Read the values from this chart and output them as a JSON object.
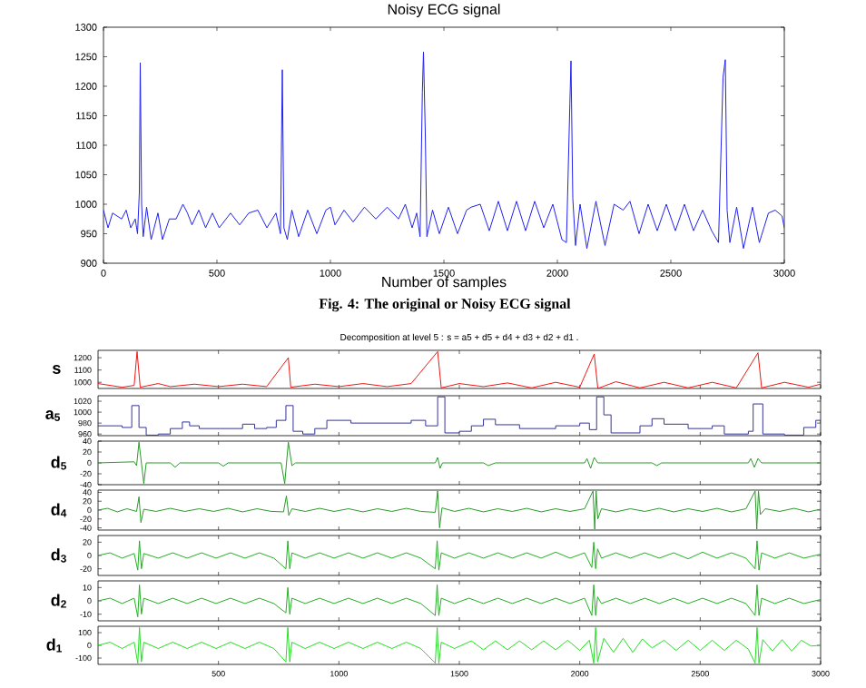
{
  "chart_data": [
    {
      "type": "line",
      "title": "Noisy ECG signal",
      "xlabel": "Number of samples",
      "annotations": [
        "Fig. 4: The original or Noisy ECG signal"
      ],
      "color": "#2020f0",
      "xlim": [
        0,
        3000
      ],
      "ylim": [
        900,
        1300
      ],
      "xticks": [
        0,
        500,
        1000,
        1500,
        2000,
        2500,
        3000
      ],
      "yticks": [
        900,
        950,
        1000,
        1050,
        1100,
        1150,
        1200,
        1250,
        1300
      ],
      "x": [
        0,
        20,
        40,
        80,
        100,
        120,
        140,
        150,
        158,
        162,
        168,
        175,
        190,
        210,
        240,
        260,
        290,
        320,
        350,
        370,
        390,
        420,
        450,
        480,
        510,
        560,
        600,
        640,
        680,
        720,
        760,
        780,
        788,
        795,
        810,
        830,
        860,
        900,
        940,
        980,
        1000,
        1020,
        1060,
        1100,
        1150,
        1200,
        1250,
        1300,
        1330,
        1360,
        1380,
        1395,
        1405,
        1410,
        1418,
        1425,
        1450,
        1480,
        1520,
        1560,
        1600,
        1620,
        1660,
        1700,
        1740,
        1780,
        1820,
        1860,
        1900,
        1940,
        1980,
        2020,
        2040,
        2055,
        2060,
        2068,
        2080,
        2100,
        2130,
        2170,
        2210,
        2250,
        2290,
        2320,
        2360,
        2400,
        2440,
        2480,
        2520,
        2560,
        2600,
        2640,
        2680,
        2710,
        2730,
        2740,
        2748,
        2760,
        2790,
        2820,
        2860,
        2890,
        2930,
        2960,
        2990,
        3000
      ],
      "values": [
        990,
        960,
        985,
        975,
        990,
        960,
        975,
        950,
        1020,
        1240,
        1000,
        945,
        995,
        940,
        985,
        940,
        975,
        975,
        1000,
        985,
        965,
        990,
        960,
        985,
        960,
        985,
        965,
        985,
        990,
        960,
        985,
        950,
        1228,
        960,
        940,
        990,
        945,
        990,
        950,
        990,
        995,
        965,
        990,
        970,
        995,
        975,
        995,
        975,
        1000,
        960,
        985,
        945,
        1190,
        1258,
        1120,
        945,
        990,
        950,
        995,
        950,
        990,
        995,
        1000,
        955,
        1005,
        955,
        1005,
        955,
        1005,
        960,
        1000,
        940,
        935,
        1170,
        1243,
        1010,
        930,
        1000,
        925,
        1005,
        930,
        1000,
        990,
        1005,
        950,
        1000,
        955,
        1000,
        955,
        1000,
        955,
        990,
        955,
        935,
        1215,
        1245,
        990,
        935,
        995,
        925,
        995,
        935,
        985,
        990,
        980,
        960
      ]
    },
    {
      "type": "line",
      "title": "Decomposition at level 5 : s = a5 + d5 + d4 + d3 + d2 + d1 .",
      "ylabel": "s",
      "color": "#ee1515",
      "xlim": [
        0,
        3000
      ],
      "ylim": [
        950,
        1260
      ],
      "xticks": [
        500,
        1000,
        1500,
        2000,
        2500,
        3000
      ],
      "yticks": [
        1000,
        1100,
        1200
      ],
      "tick_labels": "y",
      "x": [
        0,
        100,
        150,
        162,
        175,
        250,
        300,
        400,
        500,
        600,
        700,
        790,
        800,
        900,
        1000,
        1100,
        1200,
        1300,
        1410,
        1425,
        1500,
        1600,
        1700,
        1800,
        1900,
        2000,
        2060,
        2075,
        2150,
        2250,
        2350,
        2450,
        2550,
        2650,
        2740,
        2755,
        2850,
        2950,
        3000
      ],
      "values": [
        990,
        960,
        975,
        1250,
        960,
        990,
        965,
        985,
        965,
        985,
        965,
        1200,
        960,
        985,
        965,
        990,
        965,
        990,
        1250,
        955,
        990,
        965,
        995,
        955,
        1000,
        960,
        1230,
        950,
        1005,
        955,
        1000,
        955,
        1000,
        955,
        1240,
        955,
        1000,
        960,
        985
      ]
    },
    {
      "type": "step",
      "ylabel": "a$_{5}$",
      "color": "#33339a",
      "xlim": [
        0,
        3000
      ],
      "ylim": [
        957,
        1030
      ],
      "xticks": [
        500,
        1000,
        1500,
        2000,
        2500,
        3000
      ],
      "yticks": [
        960,
        980,
        1000,
        1020
      ],
      "tick_labels": "y",
      "x": [
        0,
        100,
        140,
        170,
        200,
        250,
        300,
        350,
        380,
        420,
        560,
        600,
        650,
        700,
        740,
        780,
        810,
        850,
        900,
        950,
        1050,
        1200,
        1300,
        1360,
        1410,
        1440,
        1500,
        1550,
        1600,
        1650,
        1750,
        1900,
        2000,
        2040,
        2070,
        2100,
        2130,
        2200,
        2250,
        2300,
        2350,
        2450,
        2550,
        2600,
        2700,
        2720,
        2760,
        2850,
        2930,
        2980,
        3000
      ],
      "values": [
        975,
        972,
        1012,
        972,
        958,
        960,
        970,
        982,
        975,
        970,
        970,
        978,
        970,
        972,
        985,
        1012,
        965,
        960,
        970,
        985,
        980,
        980,
        985,
        975,
        1028,
        962,
        965,
        975,
        987,
        977,
        970,
        975,
        980,
        968,
        1028,
        995,
        962,
        962,
        975,
        988,
        978,
        970,
        975,
        960,
        965,
        1015,
        960,
        958,
        972,
        985,
        980
      ]
    },
    {
      "type": "line",
      "ylabel": "d$_{5}$",
      "color": "#2a9a2a",
      "xlim": [
        0,
        3000
      ],
      "ylim": [
        -40,
        40
      ],
      "xticks": [
        500,
        1000,
        1500,
        2000,
        2500,
        3000
      ],
      "yticks": [
        -40,
        -20,
        0,
        20,
        40
      ],
      "tick_labels": "y",
      "x": [
        0,
        150,
        160,
        170,
        180,
        190,
        200,
        300,
        320,
        340,
        500,
        520,
        540,
        760,
        775,
        790,
        805,
        820,
        1000,
        1400,
        1410,
        1420,
        1430,
        1600,
        1620,
        1650,
        1900,
        2020,
        2030,
        2045,
        2060,
        2075,
        2300,
        2320,
        2340,
        2700,
        2710,
        2725,
        2740,
        2755,
        3000
      ],
      "values": [
        0,
        2,
        -5,
        38,
        0,
        -38,
        0,
        0,
        -8,
        0,
        0,
        -6,
        0,
        0,
        -38,
        38,
        -5,
        0,
        0,
        0,
        10,
        -10,
        0,
        0,
        -5,
        0,
        0,
        0,
        8,
        -10,
        10,
        0,
        0,
        -5,
        0,
        0,
        8,
        -8,
        8,
        0,
        0
      ]
    },
    {
      "type": "line",
      "ylabel": "d$_{4}$",
      "color": "#2a9a2a",
      "xlim": [
        0,
        3000
      ],
      "ylim": [
        -45,
        45
      ],
      "xticks": [
        500,
        1000,
        1500,
        2000,
        2500,
        3000
      ],
      "yticks": [
        -40,
        -20,
        0,
        20,
        40
      ],
      "tick_labels": "y",
      "x": [
        0,
        40,
        80,
        120,
        160,
        170,
        178,
        190,
        240,
        300,
        360,
        420,
        480,
        540,
        600,
        660,
        720,
        770,
        782,
        792,
        805,
        860,
        920,
        980,
        1040,
        1100,
        1160,
        1220,
        1280,
        1340,
        1400,
        1410,
        1418,
        1428,
        1480,
        1540,
        1600,
        1660,
        1720,
        1780,
        1840,
        1900,
        1960,
        2020,
        2055,
        2062,
        2068,
        2075,
        2090,
        2150,
        2210,
        2270,
        2330,
        2390,
        2450,
        2510,
        2570,
        2630,
        2690,
        2728,
        2735,
        2742,
        2750,
        2770,
        2830,
        2890,
        2950,
        3000
      ],
      "values": [
        0,
        4,
        -4,
        3,
        -3,
        30,
        -28,
        2,
        -3,
        4,
        -3,
        3,
        -3,
        4,
        -4,
        3,
        -3,
        -4,
        32,
        -12,
        3,
        -3,
        4,
        -3,
        3,
        -4,
        3,
        -3,
        4,
        -3,
        -5,
        43,
        -40,
        5,
        -3,
        4,
        -4,
        3,
        -3,
        4,
        -4,
        3,
        -3,
        3,
        43,
        -43,
        43,
        -20,
        3,
        -4,
        3,
        -3,
        4,
        -4,
        3,
        -3,
        4,
        -4,
        3,
        43,
        -43,
        43,
        -10,
        3,
        -3,
        4,
        -4,
        2
      ]
    },
    {
      "type": "line",
      "ylabel": "d$_{3}$",
      "color": "#22b022",
      "xlim": [
        0,
        3000
      ],
      "ylim": [
        -30,
        30
      ],
      "xticks": [
        500,
        1000,
        1500,
        2000,
        2500,
        3000
      ],
      "yticks": [
        -20,
        0,
        20
      ],
      "tick_labels": "y",
      "x": [
        0,
        50,
        100,
        150,
        165,
        172,
        180,
        190,
        250,
        310,
        370,
        430,
        490,
        550,
        610,
        670,
        730,
        780,
        788,
        796,
        805,
        860,
        920,
        980,
        1040,
        1100,
        1160,
        1220,
        1280,
        1340,
        1400,
        1408,
        1415,
        1425,
        1480,
        1540,
        1600,
        1660,
        1720,
        1780,
        1840,
        1900,
        1960,
        2020,
        2050,
        2058,
        2066,
        2074,
        2090,
        2150,
        2210,
        2270,
        2330,
        2390,
        2450,
        2510,
        2570,
        2630,
        2690,
        2728,
        2736,
        2744,
        2755,
        2810,
        2870,
        2930,
        3000
      ],
      "values": [
        0,
        4,
        -4,
        3,
        -22,
        22,
        -20,
        3,
        -4,
        4,
        -4,
        4,
        -4,
        4,
        -4,
        4,
        -4,
        -20,
        22,
        -20,
        4,
        -4,
        4,
        -4,
        4,
        -4,
        4,
        -4,
        4,
        -4,
        -20,
        22,
        -22,
        4,
        -4,
        4,
        -4,
        4,
        -4,
        4,
        -4,
        5,
        -4,
        4,
        -18,
        20,
        -20,
        10,
        -4,
        4,
        -4,
        4,
        -4,
        4,
        -5,
        5,
        -4,
        4,
        -4,
        -20,
        22,
        -22,
        4,
        -4,
        4,
        -4,
        2
      ]
    },
    {
      "type": "line",
      "ylabel": "d$_{2}$",
      "color": "#22b022",
      "xlim": [
        0,
        3000
      ],
      "ylim": [
        -15,
        15
      ],
      "xticks": [
        500,
        1000,
        1500,
        2000,
        2500,
        3000
      ],
      "yticks": [
        -10,
        0,
        10
      ],
      "tick_labels": "y",
      "x": [
        0,
        50,
        100,
        150,
        165,
        172,
        180,
        190,
        250,
        310,
        370,
        430,
        490,
        550,
        610,
        670,
        730,
        780,
        788,
        796,
        805,
        860,
        920,
        980,
        1040,
        1100,
        1160,
        1220,
        1280,
        1340,
        1400,
        1408,
        1415,
        1425,
        1480,
        1540,
        1600,
        1660,
        1720,
        1780,
        1840,
        1900,
        1960,
        2020,
        2050,
        2058,
        2066,
        2074,
        2090,
        2150,
        2210,
        2270,
        2330,
        2390,
        2450,
        2510,
        2570,
        2630,
        2690,
        2728,
        2736,
        2744,
        2755,
        2810,
        2870,
        2930,
        3000
      ],
      "values": [
        0,
        2,
        -2,
        2,
        -12,
        12,
        -10,
        2,
        -2,
        2,
        -2,
        2,
        -2,
        2,
        -2,
        2,
        -2,
        -9,
        10,
        -10,
        2,
        -2,
        2,
        -2,
        2,
        -2,
        2,
        -2,
        2,
        -2,
        -11,
        12,
        -11,
        2,
        -2,
        2,
        -2,
        2,
        -2,
        2,
        -2,
        2,
        -2,
        2,
        -11,
        12,
        -11,
        3,
        -2,
        2,
        -2,
        2,
        -2,
        2,
        -2,
        2,
        -2,
        2,
        -2,
        -11,
        12,
        -11,
        2,
        -2,
        2,
        -2,
        1
      ]
    },
    {
      "type": "line",
      "ylabel": "d$_{1}$",
      "color": "#22e022",
      "xlim": [
        0,
        3000
      ],
      "ylim": [
        -150,
        150
      ],
      "xticks": [
        500,
        1000,
        1500,
        2000,
        2500,
        3000
      ],
      "yticks": [
        -100,
        0,
        100
      ],
      "x": [
        0,
        50,
        100,
        150,
        165,
        172,
        180,
        190,
        250,
        310,
        370,
        430,
        490,
        550,
        610,
        670,
        730,
        780,
        788,
        796,
        805,
        860,
        920,
        980,
        1040,
        1100,
        1160,
        1220,
        1280,
        1340,
        1400,
        1408,
        1415,
        1425,
        1480,
        1550,
        1600,
        1650,
        1700,
        1750,
        1800,
        1850,
        1900,
        1950,
        2000,
        2040,
        2058,
        2066,
        2074,
        2100,
        2140,
        2180,
        2220,
        2260,
        2300,
        2350,
        2400,
        2450,
        2500,
        2550,
        2600,
        2650,
        2700,
        2728,
        2736,
        2744,
        2760,
        2800,
        2840,
        2880,
        2920,
        2960,
        3000
      ],
      "values": [
        0,
        25,
        -25,
        25,
        -140,
        140,
        -130,
        25,
        -25,
        25,
        -25,
        25,
        -25,
        25,
        -25,
        25,
        -25,
        -130,
        140,
        -130,
        25,
        -25,
        25,
        -25,
        25,
        -25,
        25,
        -25,
        25,
        -25,
        -140,
        140,
        -140,
        25,
        -25,
        35,
        -35,
        35,
        -35,
        35,
        -35,
        35,
        -35,
        40,
        -40,
        40,
        -140,
        140,
        -130,
        55,
        -55,
        55,
        -55,
        50,
        -20,
        40,
        -40,
        40,
        -40,
        40,
        -40,
        40,
        -30,
        -140,
        140,
        -140,
        45,
        -45,
        45,
        -45,
        40,
        -5,
        0
      ]
    }
  ]
}
